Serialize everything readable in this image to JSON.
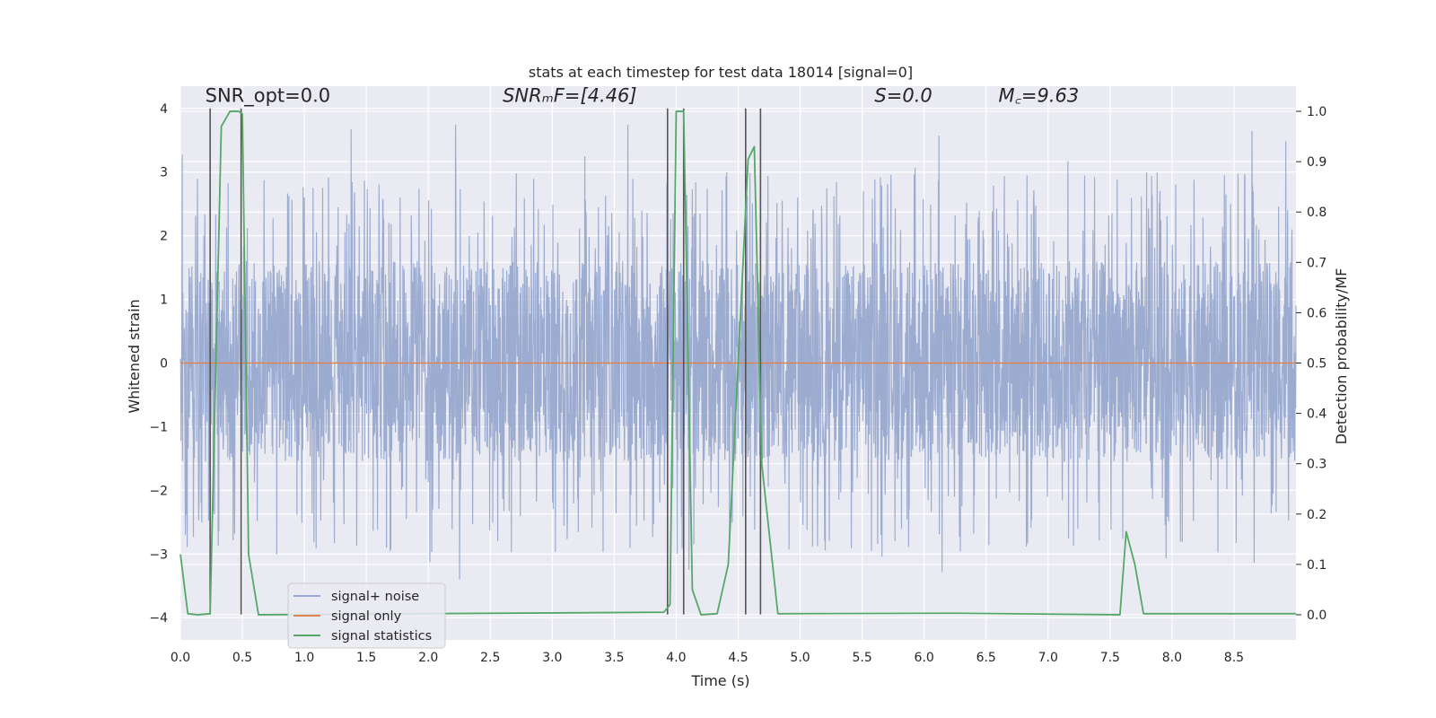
{
  "chart_data": {
    "type": "line",
    "title": "stats at each timestep for test data 18014 [signal=0]",
    "xlabel": "Time (s)",
    "ylabel_left": "Whitened strain",
    "ylabel_right": "Detection probability/MF",
    "xlim": [
      0,
      9.0
    ],
    "ylim_left": [
      -4.35,
      4.35
    ],
    "ylim_right": [
      -0.05,
      1.05
    ],
    "x_ticks": [
      "0.0",
      "0.5",
      "1.0",
      "1.5",
      "2.0",
      "2.5",
      "3.0",
      "3.5",
      "4.0",
      "4.5",
      "5.0",
      "5.5",
      "6.0",
      "6.5",
      "7.0",
      "7.5",
      "8.0",
      "8.5"
    ],
    "y_ticks_left": [
      "−4",
      "−3",
      "−2",
      "−1",
      "0",
      "1",
      "2",
      "3",
      "4"
    ],
    "y_ticks_right": [
      "0.0",
      "0.1",
      "0.2",
      "0.3",
      "0.4",
      "0.5",
      "0.6",
      "0.7",
      "0.8",
      "0.9",
      "1.0"
    ],
    "grid": true,
    "legend_position": "lower-left",
    "annotations": [
      {
        "label": "SNR_opt=0.0",
        "x": 0.2,
        "y": 4.1
      },
      {
        "label": "SNRₘF=[4.46]",
        "x": 2.6,
        "y": 4.1
      },
      {
        "label": "S=0.0",
        "x": 5.6,
        "y": 4.1
      },
      {
        "label": "M꜀=9.63",
        "x": 6.6,
        "y": 4.1
      }
    ],
    "series": [
      {
        "name": "signal+ noise",
        "color": "#98a9cf",
        "axis": "left",
        "style": "noise",
        "core_band": [
          -1.55,
          1.6
        ],
        "typical_peak_range": [
          1.8,
          3.0
        ],
        "max_peak": 4.0,
        "min_trough": -3.6,
        "sample_rate_hz": 400
      },
      {
        "name": "signal only",
        "color": "#dd8452",
        "axis": "left",
        "x": [
          0,
          9.0
        ],
        "values": [
          0,
          0
        ]
      },
      {
        "name": "signal statistics",
        "color": "#55a868",
        "axis": "right",
        "x": [
          0.0,
          0.06,
          0.14,
          0.24,
          0.33,
          0.4,
          0.47,
          0.5,
          0.55,
          0.63,
          3.9,
          3.95,
          4.0,
          4.06,
          4.13,
          4.2,
          4.33,
          4.42,
          4.58,
          4.63,
          4.69,
          4.82,
          6.25,
          7.58,
          7.63,
          7.7,
          7.77,
          9.0
        ],
        "values": [
          0.12,
          0.002,
          0.0,
          0.002,
          0.97,
          1.0,
          1.0,
          0.995,
          0.12,
          0.0,
          0.005,
          0.02,
          1.0,
          1.0,
          0.05,
          0.0,
          0.002,
          0.1,
          0.905,
          0.93,
          0.3,
          0.002,
          0.003,
          0.0,
          0.165,
          0.1,
          0.002,
          0.002
        ]
      }
    ],
    "vertical_markers": {
      "color": "#555555",
      "x": [
        0.24,
        0.49,
        3.93,
        4.06,
        4.56,
        4.68
      ],
      "ylim": [
        -3.95,
        4.0
      ]
    }
  }
}
